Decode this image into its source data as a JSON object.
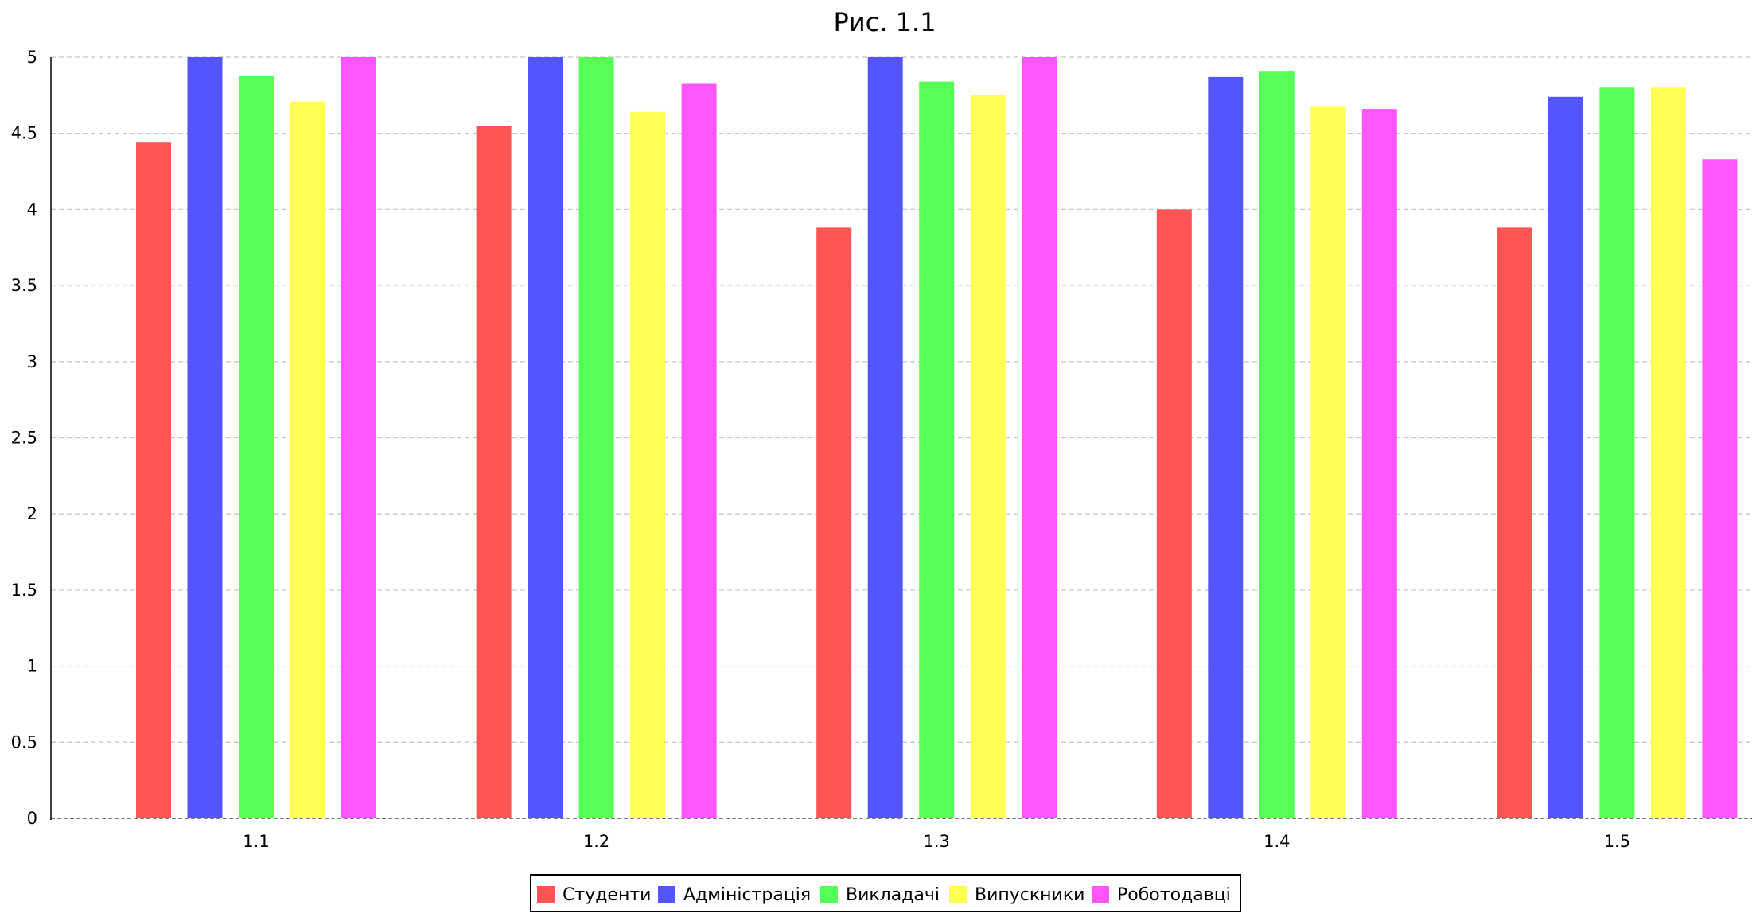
{
  "chart_data": {
    "type": "bar",
    "title": "Рис. 1.1",
    "xlabel": "",
    "ylabel": "",
    "categories": [
      "1.1",
      "1.2",
      "1.3",
      "1.4",
      "1.5"
    ],
    "ylim": [
      0,
      5
    ],
    "yticks": [
      "0",
      "0.5",
      "1",
      "1.5",
      "2",
      "2.5",
      "3",
      "3.5",
      "4",
      "4.5",
      "5"
    ],
    "grid": true,
    "legend_position": "bottom",
    "series": [
      {
        "name": "Студенти",
        "color": "#ff5555",
        "values": [
          4.44,
          4.55,
          3.88,
          4.0,
          3.88
        ]
      },
      {
        "name": "Адміністрація",
        "color": "#5555ff",
        "values": [
          5.0,
          5.0,
          5.0,
          4.87,
          4.74
        ]
      },
      {
        "name": "Викладачі",
        "color": "#55ff55",
        "values": [
          4.88,
          5.0,
          4.84,
          4.91,
          4.8
        ]
      },
      {
        "name": "Випускники",
        "color": "#ffff55",
        "values": [
          4.71,
          4.64,
          4.75,
          4.68,
          4.8
        ]
      },
      {
        "name": "Роботодавці",
        "color": "#ff55ff",
        "values": [
          5.0,
          4.83,
          5.0,
          4.66,
          4.33
        ]
      }
    ]
  }
}
